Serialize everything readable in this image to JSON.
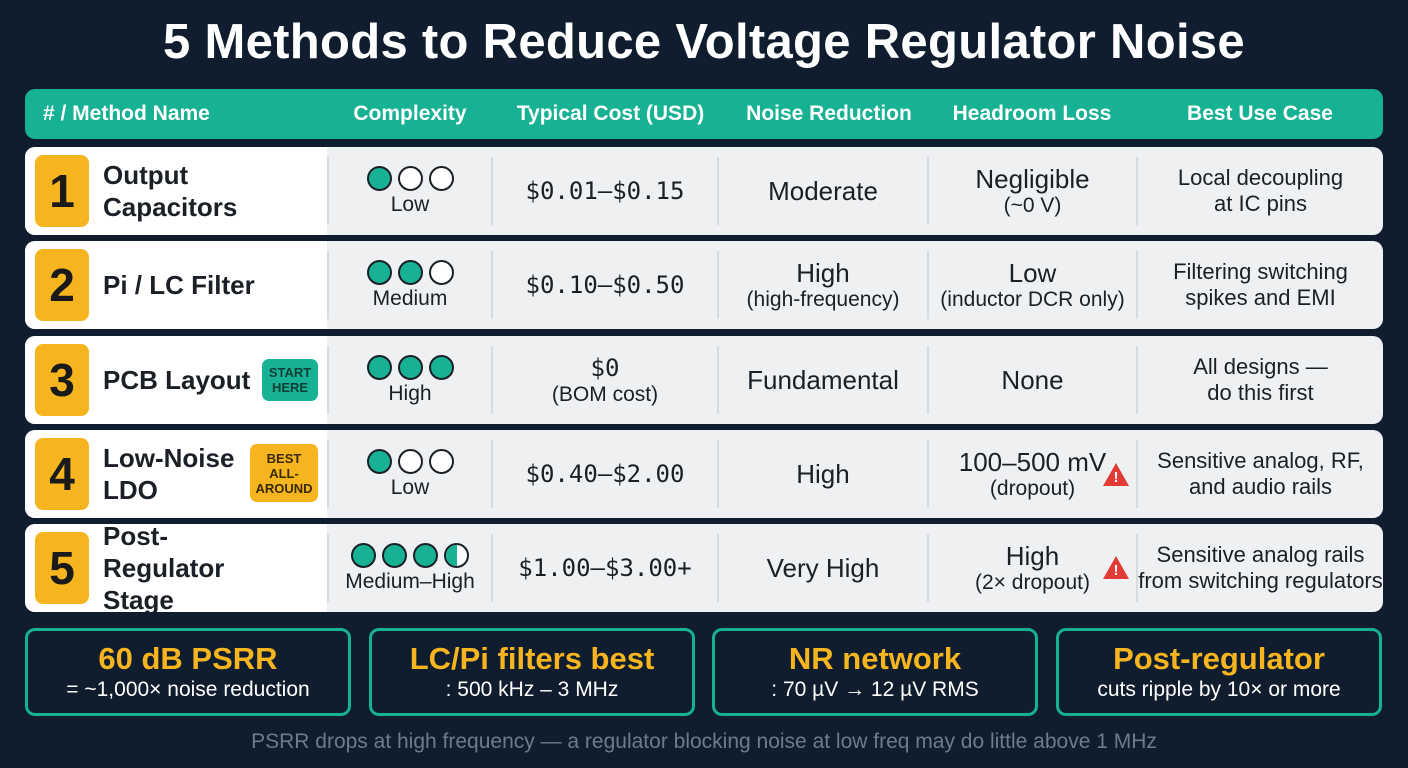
{
  "title": "5 Methods to Reduce Voltage Regulator Noise",
  "colors": {
    "background": "#0f1d2e",
    "accent_teal": "#17b193",
    "accent_orange": "#f6b51f",
    "warning_red": "#e23b35",
    "row_bg": "#eef0f2"
  },
  "header": {
    "method": "# / Method Name",
    "complexity": "Complexity",
    "cost": "Typical Cost (USD)",
    "noise": "Noise Reduction",
    "headroom": "Headroom Loss",
    "usecase": "Best Use Case"
  },
  "rows": [
    {
      "num": "1",
      "name": "Output\nCapacitors",
      "tag": "",
      "complexity_label": "Low",
      "complexity_dots": [
        1,
        0,
        0
      ],
      "cost": "$0.01–$0.15",
      "cost_sub": "",
      "noise": "Moderate",
      "noise_sub": "",
      "headroom": "Negligible",
      "headroom_sub": "(~0 V)",
      "headroom_warning": false,
      "usecase": "Local decoupling\nat IC pins"
    },
    {
      "num": "2",
      "name": "Pi / LC Filter",
      "tag": "",
      "complexity_label": "Medium",
      "complexity_dots": [
        1,
        1,
        0
      ],
      "cost": "$0.10–$0.50",
      "cost_sub": "",
      "noise": "High",
      "noise_sub": "(high-frequency)",
      "headroom": "Low",
      "headroom_sub": "(inductor DCR only)",
      "headroom_warning": false,
      "usecase": "Filtering switching\nspikes and EMI"
    },
    {
      "num": "3",
      "name": "PCB Layout",
      "tag": "START\nHERE",
      "complexity_label": "High",
      "complexity_dots": [
        1,
        1,
        1
      ],
      "cost": "$0",
      "cost_sub": "(BOM cost)",
      "noise": "Fundamental",
      "noise_sub": "",
      "headroom": "None",
      "headroom_sub": "",
      "headroom_warning": false,
      "usecase": "All designs —\ndo this first"
    },
    {
      "num": "4",
      "name": "Low-Noise\nLDO",
      "tag": "BEST\nALL-\nAROUND",
      "complexity_label": "Low",
      "complexity_dots": [
        1,
        0,
        0
      ],
      "cost": "$0.40–$2.00",
      "cost_sub": "",
      "noise": "High",
      "noise_sub": "",
      "headroom": "100–500 mV",
      "headroom_sub": "(dropout)",
      "headroom_warning": true,
      "usecase": "Sensitive analog, RF,\nand audio rails"
    },
    {
      "num": "5",
      "name": "Post-Regulator\nStage",
      "tag": "",
      "complexity_label": "Medium–High",
      "complexity_dots": [
        1,
        1,
        1,
        0.5
      ],
      "cost": "$1.00–$3.00+",
      "cost_sub": "",
      "noise": "Very High",
      "noise_sub": "",
      "headroom": "High",
      "headroom_sub": "(2× dropout)",
      "headroom_warning": true,
      "usecase": "Sensitive analog rails\nfrom switching regulators"
    }
  ],
  "callouts": [
    {
      "title": "60 dB PSRR",
      "sub": "= ~1,000× noise reduction",
      "color": "#f6b51f"
    },
    {
      "title": "LC/Pi filters best",
      "sub": ": 500 kHz – 3 MHz",
      "color": "#f6b51f"
    },
    {
      "title": "NR network",
      "sub": ": 70 µV → 12 µV RMS",
      "color": "#f6b51f"
    },
    {
      "title": "Post-regulator",
      "sub": "cuts ripple by 10× or more",
      "color": "#f6b51f"
    }
  ],
  "footer": "PSRR drops at high frequency — a regulator blocking noise at low freq may do little above 1 MHz"
}
